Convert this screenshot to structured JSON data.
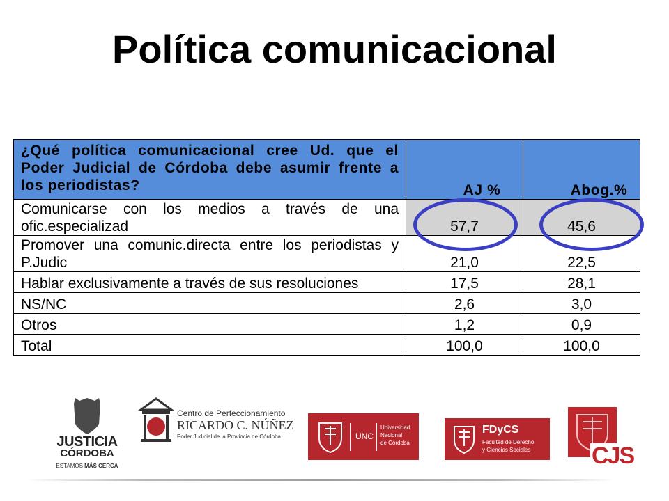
{
  "slide": {
    "title": "Política comunicacional"
  },
  "table": {
    "question": "¿Qué política comunicacional  cree Ud. que el Poder Judicial de Córdoba debe asumir frente a los periodistas?",
    "col_aj": "AJ %",
    "col_abog": "Abog.%",
    "rows": [
      {
        "label": "Comunicarse con los medios a través de una ofic.especializad",
        "aj": "57,7",
        "abog": "45,6"
      },
      {
        "label": "Promover una comunic.directa entre los periodistas y P.Judic",
        "aj": "21,0",
        "abog": "22,5"
      },
      {
        "label": "Hablar exclusivamente a través de sus resoluciones",
        "aj": "17,5",
        "abog": "28,1"
      },
      {
        "label": "NS/NC",
        "aj": "2,6",
        "abog": "3,0"
      },
      {
        "label": "Otros",
        "aj": "1,2",
        "abog": "0,9"
      },
      {
        "label": "Total",
        "aj": "100,0",
        "abog": "100,0"
      }
    ],
    "highlight_color": "#3a3fc4"
  },
  "logos": {
    "justicia": {
      "line1": "JUSTICIA",
      "line2": "CÓRDOBA",
      "tagline_a": "ESTAMOS ",
      "tagline_b": "MÁS CERCA"
    },
    "centro": {
      "line1": "Centro de Perfeccionamiento",
      "line2": "RICARDO C. NÚÑEZ",
      "line3": "Poder Judicial de la Provincia de Córdoba"
    },
    "unc": {
      "abbr": "UNC",
      "line1": "Universidad",
      "line2": "Nacional",
      "line3": "de Córdoba"
    },
    "fdycs": {
      "abbr": "FDyCS",
      "line1": "Facultad de Derecho",
      "line2": "y Ciencias Sociales"
    },
    "cjs": {
      "abbr": "CJS"
    }
  },
  "colors": {
    "header_blue": "#568ddb",
    "unc_red": "#b5262d",
    "cjs_red": "#c0272d"
  }
}
